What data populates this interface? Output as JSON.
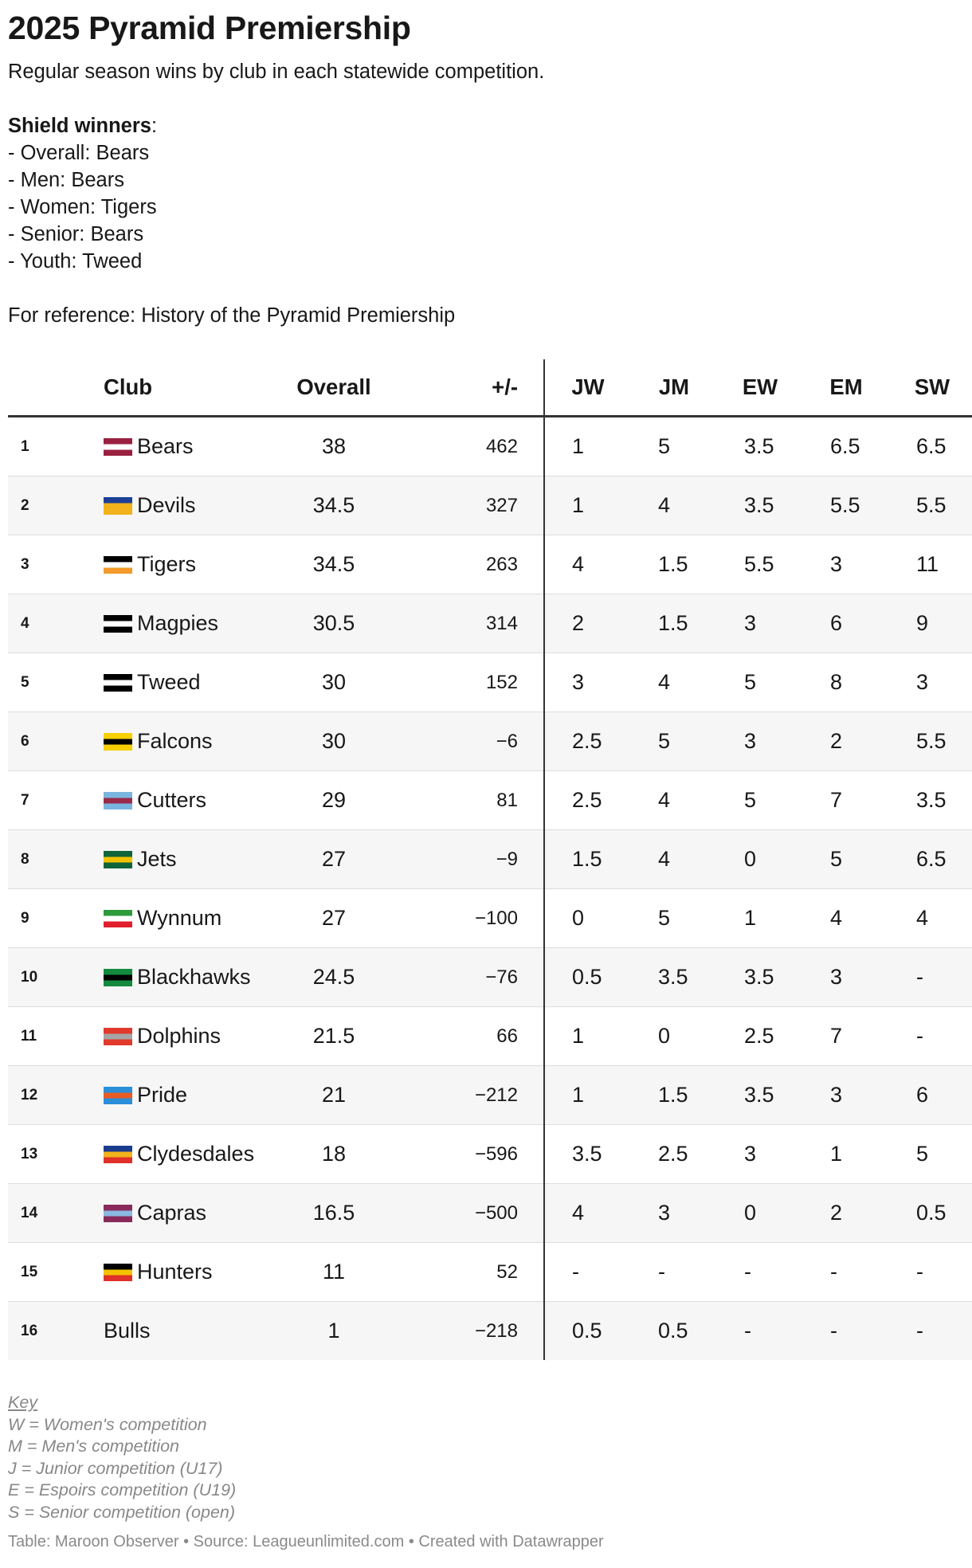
{
  "title": "2025 Pyramid Premiership",
  "subtitle": "Regular season wins by club in each statewide competition.",
  "shield": {
    "heading": "Shield winners",
    "lines": [
      "- Overall: Bears",
      "- Men: Bears",
      "- Women: Tigers",
      "- Senior: Bears",
      "- Youth: Tweed"
    ]
  },
  "reference": "For reference: History of the Pyramid Premiership",
  "chart_data": {
    "type": "table",
    "columns": [
      "",
      "Club",
      "Overall",
      "+/-",
      "JW",
      "JM",
      "EW",
      "EM",
      "SW"
    ],
    "rows": [
      {
        "rank": "1",
        "club": "Bears",
        "overall": "38",
        "diff": "462",
        "jw": "1",
        "jm": "5",
        "ew": "3.5",
        "em": "6.5",
        "sw": "6.5",
        "colors": [
          "#9a2040",
          "#ffffff",
          "#9a2040"
        ]
      },
      {
        "rank": "2",
        "club": "Devils",
        "overall": "34.5",
        "diff": "327",
        "jw": "1",
        "jm": "4",
        "ew": "3.5",
        "em": "5.5",
        "sw": "5.5",
        "colors": [
          "#1c3f94",
          "#f2b21b",
          "#f2b21b"
        ]
      },
      {
        "rank": "3",
        "club": "Tigers",
        "overall": "34.5",
        "diff": "263",
        "jw": "4",
        "jm": "1.5",
        "ew": "5.5",
        "em": "3",
        "sw": "11",
        "colors": [
          "#000000",
          "#ffffff",
          "#f39a2b"
        ]
      },
      {
        "rank": "4",
        "club": "Magpies",
        "overall": "30.5",
        "diff": "314",
        "jw": "2",
        "jm": "1.5",
        "ew": "3",
        "em": "6",
        "sw": "9",
        "colors": [
          "#000000",
          "#ffffff",
          "#000000"
        ]
      },
      {
        "rank": "5",
        "club": "Tweed",
        "overall": "30",
        "diff": "152",
        "jw": "3",
        "jm": "4",
        "ew": "5",
        "em": "8",
        "sw": "3",
        "colors": [
          "#000000",
          "#ffffff",
          "#000000"
        ]
      },
      {
        "rank": "6",
        "club": "Falcons",
        "overall": "30",
        "diff": "−6",
        "jw": "2.5",
        "jm": "5",
        "ew": "3",
        "em": "2",
        "sw": "5.5",
        "colors": [
          "#f8d000",
          "#000000",
          "#f8d000"
        ]
      },
      {
        "rank": "7",
        "club": "Cutters",
        "overall": "29",
        "diff": "81",
        "jw": "2.5",
        "jm": "4",
        "ew": "5",
        "em": "7",
        "sw": "3.5",
        "colors": [
          "#7ab5e0",
          "#9a2a4a",
          "#7ab5e0"
        ]
      },
      {
        "rank": "8",
        "club": "Jets",
        "overall": "27",
        "diff": "−9",
        "jw": "1.5",
        "jm": "4",
        "ew": "0",
        "em": "5",
        "sw": "6.5",
        "colors": [
          "#10643a",
          "#f2c200",
          "#10643a"
        ]
      },
      {
        "rank": "9",
        "club": "Wynnum",
        "overall": "27",
        "diff": "−100",
        "jw": "0",
        "jm": "5",
        "ew": "1",
        "em": "4",
        "sw": "4",
        "colors": [
          "#2d9a3c",
          "#ffffff",
          "#e01e2d"
        ]
      },
      {
        "rank": "10",
        "club": "Blackhawks",
        "overall": "24.5",
        "diff": "−76",
        "jw": "0.5",
        "jm": "3.5",
        "ew": "3.5",
        "em": "3",
        "sw": "-",
        "colors": [
          "#138a3e",
          "#000000",
          "#138a3e"
        ]
      },
      {
        "rank": "11",
        "club": "Dolphins",
        "overall": "21.5",
        "diff": "66",
        "jw": "1",
        "jm": "0",
        "ew": "2.5",
        "em": "7",
        "sw": "-",
        "colors": [
          "#e03a2c",
          "#a6a6a6",
          "#e03a2c"
        ]
      },
      {
        "rank": "12",
        "club": "Pride",
        "overall": "21",
        "diff": "−212",
        "jw": "1",
        "jm": "1.5",
        "ew": "3.5",
        "em": "3",
        "sw": "6",
        "colors": [
          "#2a8fd8",
          "#e85b24",
          "#2a8fd8"
        ]
      },
      {
        "rank": "13",
        "club": "Clydesdales",
        "overall": "18",
        "diff": "−596",
        "jw": "3.5",
        "jm": "2.5",
        "ew": "3",
        "em": "1",
        "sw": "5",
        "colors": [
          "#1a3c8c",
          "#f2b21b",
          "#e0302a"
        ]
      },
      {
        "rank": "14",
        "club": "Capras",
        "overall": "16.5",
        "diff": "−500",
        "jw": "4",
        "jm": "3",
        "ew": "0",
        "em": "2",
        "sw": "0.5",
        "colors": [
          "#8a2a5c",
          "#8ab8e0",
          "#8a2a5c"
        ]
      },
      {
        "rank": "15",
        "club": "Hunters",
        "overall": "11",
        "diff": "52",
        "jw": "-",
        "jm": "-",
        "ew": "-",
        "em": "-",
        "sw": "-",
        "colors": [
          "#000000",
          "#f2c200",
          "#e0302a"
        ]
      },
      {
        "rank": "16",
        "club": "Bulls",
        "overall": "1",
        "diff": "−218",
        "jw": "0.5",
        "jm": "0.5",
        "ew": "-",
        "em": "-",
        "sw": "-",
        "colors": []
      }
    ]
  },
  "key": {
    "title": "Key",
    "lines": [
      "W = Women's competition",
      "M = Men's competition",
      "J = Junior competition (U17)",
      "E = Espoirs competition (U19)",
      "S = Senior competition (open)"
    ]
  },
  "footer": "Table: Maroon Observer • Source: Leagueunlimited.com • Created with Datawrapper"
}
